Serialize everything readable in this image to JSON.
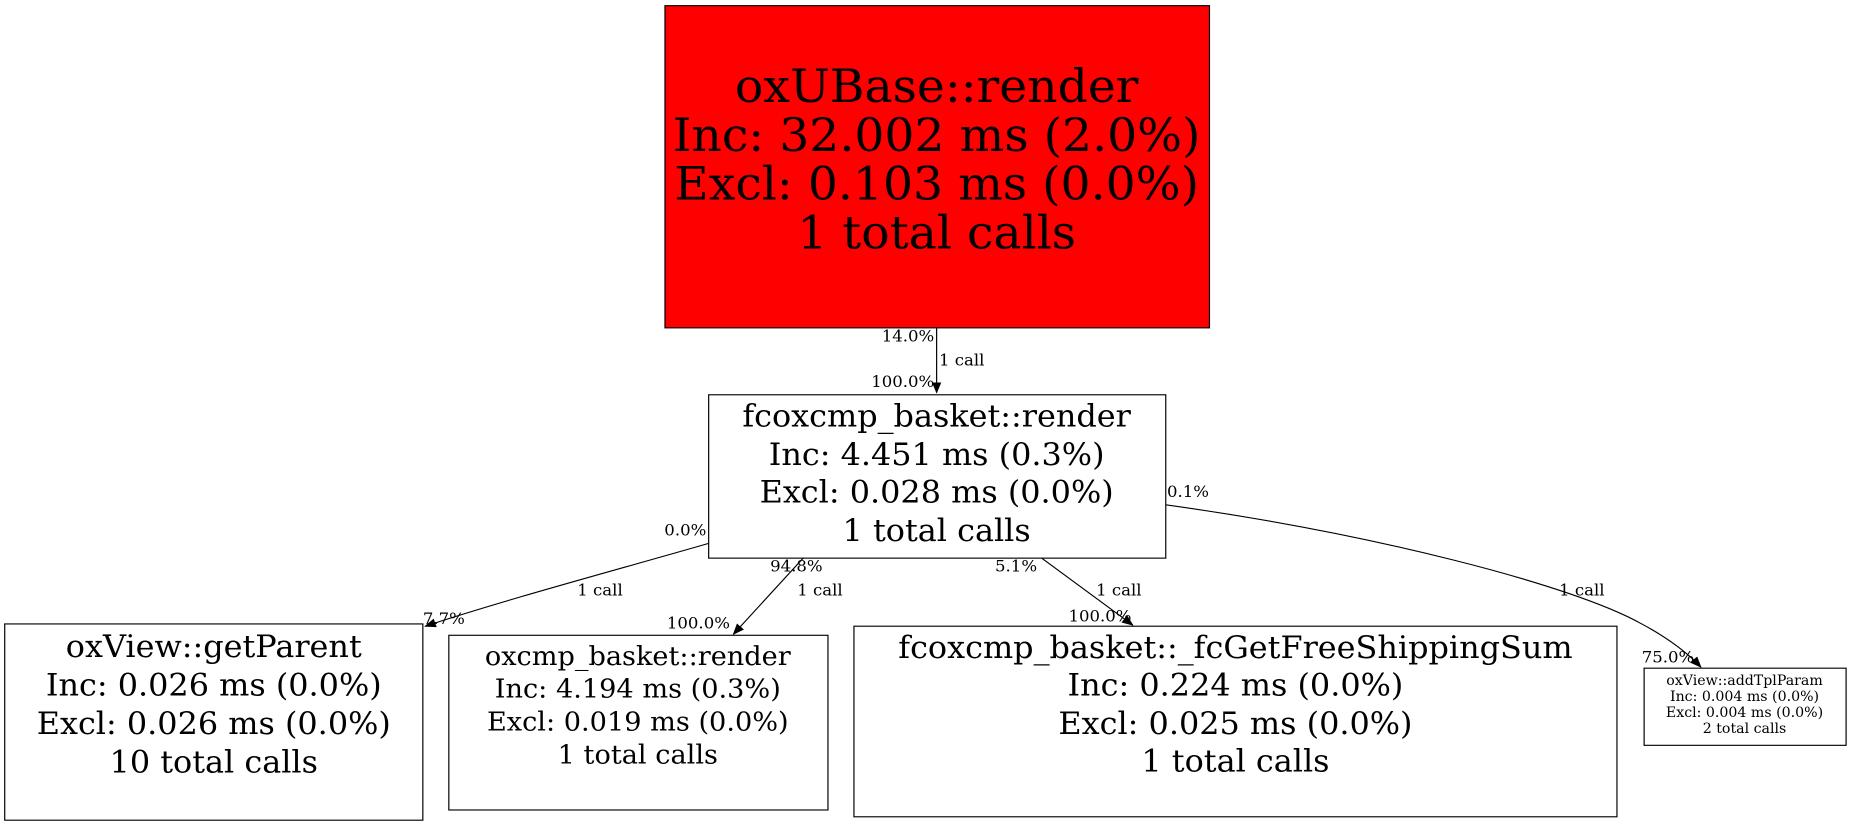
{
  "root_color": "#ff0000",
  "nodes": {
    "ubase": {
      "name": "oxUBase::render",
      "inc": "Inc: 32.002 ms (2.0%)",
      "excl": "Excl: 0.103 ms (0.0%)",
      "calls": "1 total calls"
    },
    "fcbasket": {
      "name": "fcoxcmp_basket::render",
      "inc": "Inc: 4.451 ms (0.3%)",
      "excl": "Excl: 0.028 ms (0.0%)",
      "calls": "1 total calls"
    },
    "getparent": {
      "name": "oxView::getParent",
      "inc": "Inc: 0.026 ms (0.0%)",
      "excl": "Excl: 0.026 ms (0.0%)",
      "calls": "10 total calls"
    },
    "oxbasket": {
      "name": "oxcmp_basket::render",
      "inc": "Inc: 4.194 ms (0.3%)",
      "excl": "Excl: 0.019 ms (0.0%)",
      "calls": "1 total calls"
    },
    "freeship": {
      "name": "fcoxcmp_basket::_fcGetFreeShippingSum",
      "inc": "Inc: 0.224 ms (0.0%)",
      "excl": "Excl: 0.025 ms (0.0%)",
      "calls": "1 total calls"
    },
    "addtpl": {
      "name": "oxView::addTplParam",
      "inc": "Inc: 0.004 ms (0.0%)",
      "excl": "Excl: 0.004 ms (0.0%)",
      "calls": "2 total calls"
    }
  },
  "edges": {
    "ubase_fcbasket": {
      "tail": "14.0%",
      "label": "1 call",
      "head": "100.0%"
    },
    "fcbasket_getparent": {
      "tail": "0.0%",
      "label": "1 call",
      "head": "7.7%"
    },
    "fcbasket_oxbasket": {
      "tail": "94.8%",
      "label": "1 call",
      "head": "100.0%"
    },
    "fcbasket_freeship": {
      "tail": "5.1%",
      "label": "1 call",
      "head": "100.0%"
    },
    "fcbasket_addtpl": {
      "tail": "0.1%",
      "label": "1 call",
      "head": "75.0%"
    }
  }
}
